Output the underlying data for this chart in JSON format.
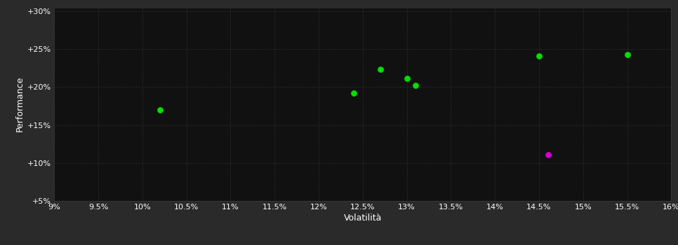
{
  "background_color": "#2a2a2a",
  "plot_bg_color": "#111111",
  "grid_color": "#3a3a3a",
  "text_color": "#ffffff",
  "xlabel": "Volatilità",
  "ylabel": "Performance",
  "xlim": [
    0.09,
    0.16
  ],
  "ylim": [
    0.05,
    0.305
  ],
  "xticks": [
    0.09,
    0.095,
    0.1,
    0.105,
    0.11,
    0.115,
    0.12,
    0.125,
    0.13,
    0.135,
    0.14,
    0.145,
    0.15,
    0.155,
    0.16
  ],
  "yticks": [
    0.05,
    0.1,
    0.15,
    0.2,
    0.25,
    0.3
  ],
  "xtick_labels": [
    "9%",
    "9.5%",
    "10%",
    "10.5%",
    "11%",
    "11.5%",
    "12%",
    "12.5%",
    "13%",
    "13.5%",
    "14%",
    "14.5%",
    "15%",
    "15.5%",
    "16%"
  ],
  "ytick_labels": [
    "+5%",
    "+10%",
    "+15%",
    "+20%",
    "+25%",
    "+30%"
  ],
  "green_points": [
    [
      0.102,
      0.17
    ],
    [
      0.124,
      0.192
    ],
    [
      0.127,
      0.223
    ],
    [
      0.13,
      0.211
    ],
    [
      0.131,
      0.202
    ],
    [
      0.145,
      0.241
    ],
    [
      0.155,
      0.243
    ]
  ],
  "magenta_points": [
    [
      0.146,
      0.111
    ]
  ],
  "green_color": "#00dd00",
  "magenta_color": "#cc00cc",
  "marker_size": 40,
  "font_size_ticks": 8,
  "font_size_axis_label": 9
}
